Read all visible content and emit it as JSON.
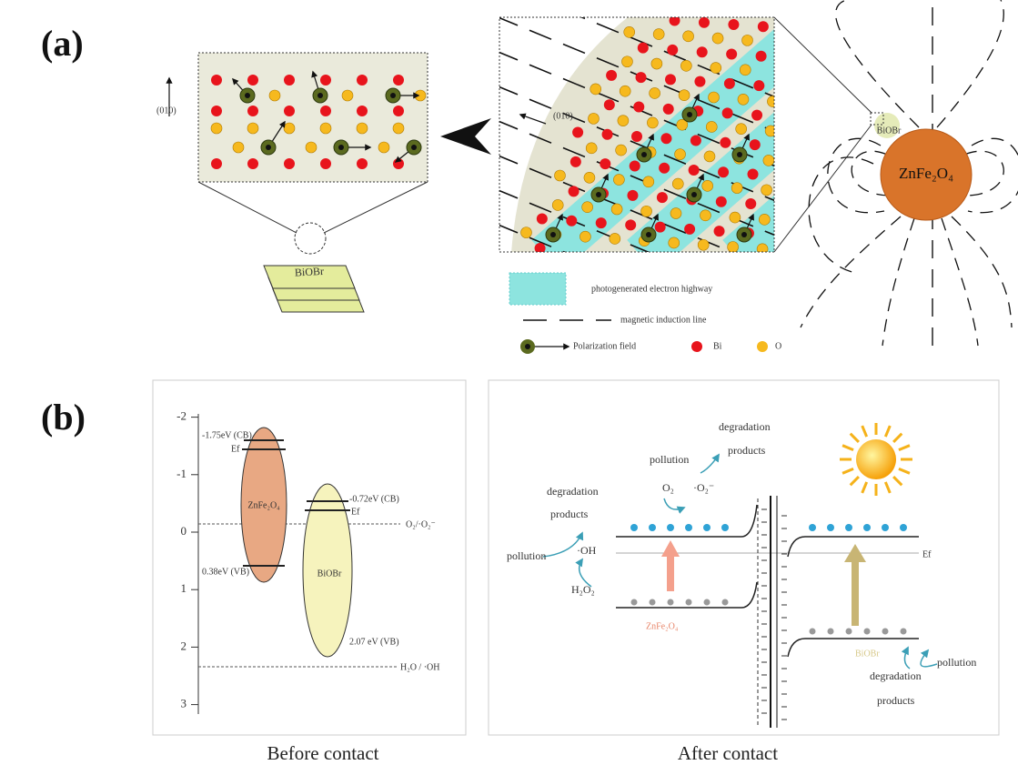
{
  "panel_a": {
    "label": "(a)",
    "lattice": {
      "direction": "(010)",
      "slab": "BiOBr"
    },
    "zoom": {
      "direction": "(010)"
    },
    "particle": "BiOBr",
    "sphere": "ZnFe₂O₄",
    "legend": {
      "highway": "photogenerated electron highway",
      "induction": "magnetic induction line",
      "polarization": "Polarization field",
      "bi": "Bi",
      "o": "O"
    }
  },
  "panel_b": {
    "label": "(b)",
    "before": {
      "caption": "Before contact",
      "yticks": [
        -2,
        -1,
        0,
        1,
        2,
        3
      ],
      "zn": {
        "name": "ZnFe₂O₄",
        "cb": "-1.75eV (CB)",
        "ef": "Ef",
        "vb": "0.38eV (VB)"
      },
      "bi": {
        "name": "BiOBr",
        "cb": "-0.72eV (CB)",
        "ef": "Ef",
        "vb": "2.07 eV (VB)"
      },
      "o2": "O₂/·O₂⁻",
      "oh": "H₂O / ·OH"
    },
    "after": {
      "caption": "After contact",
      "top": {
        "word1": "degradation",
        "word2": "products",
        "pollution": "pollution",
        "o2": "O₂",
        "superoxide": "·O₂⁻"
      },
      "left": {
        "word1": "degradation",
        "word2": "products",
        "pollution": "pollution",
        "oh": "·OH",
        "h2o2": "H₂O₂"
      },
      "zn": "ZnFe₂O₄",
      "bi": "BiOBr",
      "ef": "Ef",
      "right": {
        "pollution": "pollution",
        "word1": "degradation",
        "word2": "products"
      }
    }
  }
}
